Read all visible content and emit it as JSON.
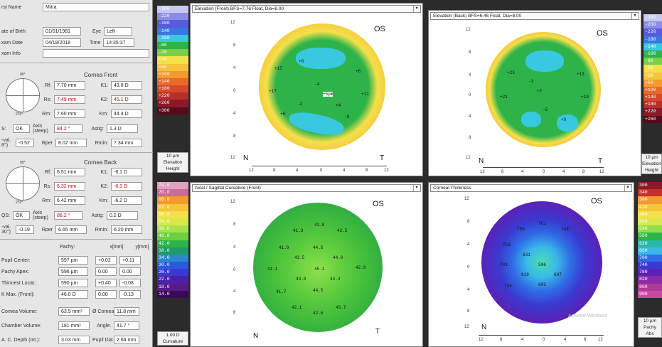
{
  "patient": {
    "first_name_label": "rst Name",
    "first_name": "Mitra",
    "dob_label": "ate of Birth",
    "dob": "01/01/1981",
    "eye_label": "Eye",
    "eye": "Left",
    "exam_date_label": "xam Date",
    "exam_date": "04/18/2018",
    "time_label": "Time",
    "time": "14:35:37",
    "exam_info_label": "xam Info"
  },
  "cornea_front": {
    "title": "Cornea Front",
    "rf_label": "Rf:",
    "rf": "7.70 mm",
    "k1_label": "K1:",
    "k1": "43.8 D",
    "rs_label": "Rs:",
    "rs": "7.49 mm",
    "k2_label": "K2:",
    "k2": "45.1 D",
    "rm_label": "Rm:",
    "rm": "7.60 mm",
    "km_label": "Km:",
    "km": "44.4 D",
    "qs_label": "S:",
    "qs": "OK",
    "axis_label": "Axis (steep)",
    "axis": "84.2 °",
    "astig_label": "Astig:",
    "astig": "1.3 D",
    "qval_label": "-val. 8°)",
    "qval": "-0.52",
    "rper_label": "Rper",
    "rper": "8.02 mm",
    "rmin_label": "Rmin:",
    "rmin": "7.34 mm",
    "deg90": "90°",
    "deg270": "270°"
  },
  "cornea_back": {
    "title": "Cornea Back",
    "rf_label": "Rf:",
    "rf": "6.51 mm",
    "k1_label": "K1:",
    "k1": "-6.1 D",
    "rs_label": "Rs:",
    "rs": "6.32 mm",
    "k2_label": "K2:",
    "k2": "-6.3 D",
    "rm_label": "Rm:",
    "rm": "6.42 mm",
    "km_label": "Km:",
    "km": "-6.2 D",
    "qs_label": "QS:",
    "qs": "OK",
    "axis_label": "Axis (steep)",
    "axis": "86.2 °",
    "astig_label": "Astig:",
    "astig": "0.2 D",
    "qval_label": "-val. 30°)",
    "qval": "-0.19",
    "rper_label": "Rper",
    "rper": "6.65 mm",
    "rmin_label": "Rmin:",
    "rmin": "6.20 mm",
    "deg90": "90°",
    "deg270": "270°"
  },
  "pachy": {
    "pachy_label": "Pachy:",
    "x_label": "x[mm]",
    "y_label": "y[mm]",
    "rows": [
      {
        "label": "Pupil Center:",
        "value": "597 µm",
        "x": "+0.02",
        "y": "+0.11"
      },
      {
        "label": "Pachy Apex:",
        "value": "596 µm",
        "x": "0.00",
        "y": "0.00"
      },
      {
        "label": "Thinnest Locat.:",
        "value": "590 µm",
        "x": "+0.40",
        "y": "-0.08"
      },
      {
        "label": "K Max. (Front):",
        "value": "46.0 D",
        "x": "0.00",
        "y": "-0.13"
      }
    ],
    "volume_label": "Cornea Volume:",
    "volume": "63.5 mm³",
    "dcornea_label": "Ø Cornea:",
    "dcornea": "11.8 mm",
    "chamber_label": "Chamber Volume:",
    "chamber": "181 mm³",
    "angle_label": "Angle:",
    "angle": "41.7 °",
    "acd_label": "A. C. Depth (Int.):",
    "acd": "3.03 mm",
    "pupil_label": "Pupil Dia:",
    "pupil": "2.64 mm"
  },
  "scales": {
    "elev_front": {
      "values": [
        "-260",
        "-220",
        "-180",
        "-140",
        "-100",
        "-60",
        "-20",
        "+20",
        "+60",
        "+100",
        "+140",
        "+180",
        "+220",
        "+260",
        "+300"
      ],
      "unit": "10 µm",
      "name1": "Elevation",
      "name2": "Height"
    },
    "elev_back": {
      "values": [
        "-300",
        "-260",
        "-220",
        "-180",
        "-140",
        "-100",
        "-60",
        "-20",
        "+20",
        "+60",
        "+100",
        "+140",
        "+180",
        "+220",
        "+260"
      ],
      "unit": "10 µm",
      "name1": "Elevation",
      "name2": "Height"
    },
    "curv": {
      "values": [
        "74.0",
        "70.0",
        "66.0",
        "62.0",
        "58.0",
        "54.0",
        "50.0",
        "46.0",
        "42.0",
        "38.0",
        "34.0",
        "30.0",
        "26.0",
        "22.0",
        "18.0",
        "14.0"
      ],
      "unit": "1.00 D",
      "name1": "Curvature"
    },
    "thick": {
      "values": [
        "300",
        "340",
        "380",
        "420",
        "460",
        "500",
        "540",
        "580",
        "620",
        "660",
        "700",
        "740",
        "780",
        "820",
        "860",
        "900"
      ],
      "unit": "10 µm",
      "name1": "Pachy",
      "name2": "Abs"
    }
  },
  "maps": {
    "elev_front": {
      "title": "Elevation (Front)  BFS=7.76 Float, Dia=8.00",
      "eye": "OS",
      "labels": [
        "+17",
        "+8",
        "+17",
        "-4",
        "+11",
        "+6",
        "+6",
        "-2",
        "-9",
        "+4"
      ],
      "center": "+5pm"
    },
    "elev_back": {
      "title": "Elevation (Back)  BFS=6.46 Float, Dia=8.00",
      "eye": "OS",
      "labels": [
        "+23",
        "+13",
        "+21",
        "+19",
        "+7",
        "-5",
        "-3",
        "+9"
      ]
    },
    "curv": {
      "title": "Axial / Sagittal Curvature (Front)",
      "eye": "OS",
      "labels": [
        "41.3",
        "42.8",
        "42.5",
        "41.9",
        "44.5",
        "43.5",
        "44.0",
        "41.1",
        "45.1",
        "42.9",
        "43.8",
        "44.3",
        "41.7",
        "44.5",
        "42.1",
        "42.6",
        "43.7"
      ]
    },
    "thick": {
      "title": "Corneal Thickness",
      "eye": "OS",
      "labels": [
        "761",
        "756",
        "748",
        "753",
        "631",
        "596",
        "741",
        "619",
        "607",
        "724",
        "603"
      ],
      "watermark": "Activate Windows"
    }
  },
  "axes": {
    "y": [
      "12",
      "8",
      "4",
      "0",
      "4",
      "8",
      "12"
    ],
    "x": [
      "12",
      "8",
      "4",
      "0",
      "4",
      "8",
      "12"
    ],
    "n": "N",
    "t": "T"
  },
  "colors": {
    "elev_green": "#2db34a",
    "elev_yellow": "#f4e04a",
    "elev_orange": "#f29a2e",
    "elev_cyan": "#38c8e0",
    "purple": "#6a1fb0",
    "blue": "#2a5ae0"
  }
}
